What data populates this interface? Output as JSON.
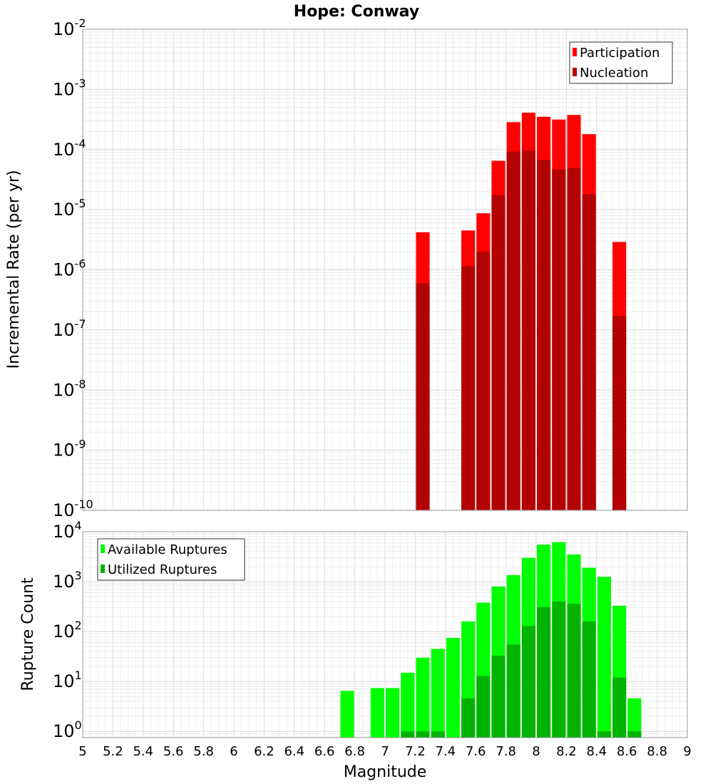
{
  "chart_data": [
    {
      "type": "bar",
      "title": "Hope: Conway",
      "ylabel": "Incremental Rate (per yr)",
      "xlabel": "",
      "xlim": [
        5,
        9
      ],
      "ylim": [
        1e-10,
        0.01
      ],
      "yscale": "log",
      "ytick_exponents": [
        -10,
        -9,
        -8,
        -7,
        -6,
        -5,
        -4,
        -3,
        -2
      ],
      "grid": true,
      "legend_position": "top-right",
      "bar_width": 0.09,
      "series": [
        {
          "name": "Participation",
          "color": "#ff0000",
          "x": [
            7.25,
            7.55,
            7.65,
            7.75,
            7.85,
            7.95,
            8.05,
            8.15,
            8.25,
            8.35,
            8.55
          ],
          "values": [
            4.2e-06,
            4.5e-06,
            8.7e-06,
            6.5e-05,
            0.000285,
            0.00041,
            0.00035,
            0.000315,
            0.000375,
            0.00018,
            2.9e-06
          ]
        },
        {
          "name": "Nucleation",
          "color": "#b30000",
          "x": [
            7.25,
            7.55,
            7.65,
            7.75,
            7.85,
            7.95,
            8.05,
            8.15,
            8.25,
            8.35,
            8.55
          ],
          "values": [
            6e-07,
            1.15e-06,
            2e-06,
            1.75e-05,
            9.2e-05,
            9.6e-05,
            6.7e-05,
            4.7e-05,
            4.9e-05,
            1.8e-05,
            1.7e-07
          ]
        }
      ]
    },
    {
      "type": "bar",
      "title": "",
      "ylabel": "Rupture Count",
      "xlabel": "Magnitude",
      "xlim": [
        5,
        9
      ],
      "ylim": [
        0.75,
        10000
      ],
      "yscale": "log",
      "ytick_exponents": [
        0,
        1,
        2,
        3,
        4
      ],
      "xticks": [
        "5",
        "5.2",
        "5.4",
        "5.6",
        "5.8",
        "6",
        "6.2",
        "6.4",
        "6.6",
        "6.8",
        "7",
        "7.2",
        "7.4",
        "7.6",
        "7.8",
        "8",
        "8.2",
        "8.4",
        "8.6",
        "8.8",
        "9"
      ],
      "grid": true,
      "legend_position": "top-left",
      "bar_width": 0.09,
      "series": [
        {
          "name": "Available Ruptures",
          "color": "#00ff00",
          "x": [
            6.75,
            6.95,
            7.05,
            7.15,
            7.25,
            7.35,
            7.45,
            7.55,
            7.65,
            7.75,
            7.85,
            7.95,
            8.05,
            8.15,
            8.25,
            8.35,
            8.45,
            8.55,
            8.65
          ],
          "values": [
            6.5,
            7.4,
            7.4,
            15,
            30,
            45,
            75,
            160,
            380,
            800,
            1350,
            3000,
            5500,
            6200,
            3500,
            1900,
            1250,
            330,
            4.6
          ]
        },
        {
          "name": "Utilized Ruptures",
          "color": "#00b300",
          "x": [
            7.15,
            7.25,
            7.35,
            7.55,
            7.65,
            7.75,
            7.85,
            7.95,
            8.05,
            8.15,
            8.25,
            8.35,
            8.45,
            8.55,
            8.65
          ],
          "values": [
            1,
            1,
            1,
            4.6,
            13,
            33,
            55,
            130,
            310,
            400,
            360,
            160,
            1,
            12,
            1
          ]
        }
      ]
    }
  ]
}
